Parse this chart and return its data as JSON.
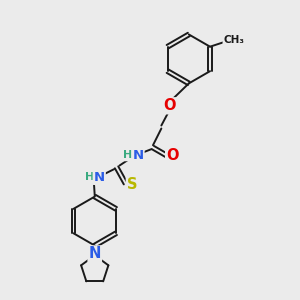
{
  "background_color": "#ebebeb",
  "fig_width": 3.0,
  "fig_height": 3.0,
  "dpi": 100,
  "bond_color": "#1a1a1a",
  "bond_width": 1.4,
  "font_size": 8.5,
  "colors": {
    "C": "#1a1a1a",
    "N": "#2b5ce6",
    "O": "#e60000",
    "S": "#b8b800",
    "H": "#3aaa80"
  }
}
